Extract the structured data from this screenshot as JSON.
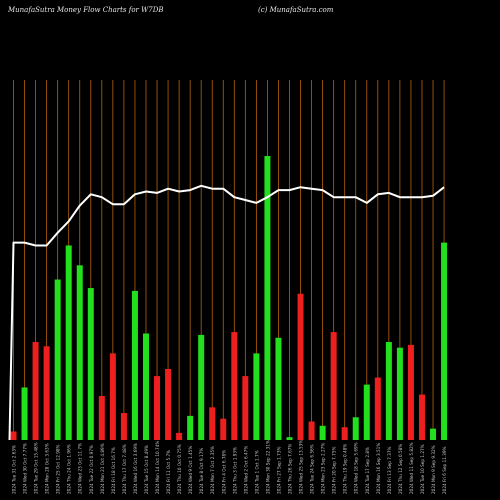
{
  "header": {
    "title": "MunafaSutra  Money Flow  Charts for W7DB",
    "source": "(c) MunafaSutra.com"
  },
  "colors": {
    "background": "#000000",
    "gridline": "#b8620a",
    "up": "#22e01e",
    "down": "#ee1f1f",
    "line": "#ffffff",
    "label": "#c8c8c8"
  },
  "chart_data": {
    "type": "bar",
    "title": "MunafaSutra  Money Flow  Charts for W7DB",
    "ylim": [
      0,
      100
    ],
    "grid": true,
    "bar_colors": [
      "down",
      "up",
      "down",
      "down",
      "up",
      "up",
      "up",
      "up",
      "down",
      "down",
      "down",
      "up",
      "up",
      "down",
      "down",
      "down",
      "up",
      "up",
      "down",
      "down",
      "down",
      "down",
      "up",
      "up",
      "up",
      "up",
      "down",
      "down",
      "up",
      "down",
      "down",
      "up",
      "up",
      "down",
      "up",
      "up",
      "down",
      "down",
      "up",
      "up"
    ],
    "values": [
      3,
      18.5,
      34.5,
      33,
      56.5,
      68.5,
      61.5,
      53.5,
      15.5,
      30.5,
      9.5,
      52.5,
      37.5,
      22.5,
      25,
      2.5,
      8.5,
      37,
      11.5,
      7.5,
      38,
      22.5,
      30.5,
      100,
      36,
      1,
      51.5,
      6.5,
      5,
      38,
      4.5,
      8,
      19.5,
      22,
      34.5,
      32.5,
      33.5,
      16,
      4,
      69.5
    ],
    "line": [
      69.5,
      69.5,
      68.5,
      68.5,
      73,
      77,
      82.5,
      86.5,
      85.5,
      83,
      83,
      86.5,
      87.5,
      87,
      88.5,
      87.5,
      88,
      89.5,
      88.5,
      88.5,
      85.5,
      84.5,
      83.5,
      85.5,
      88,
      88,
      89,
      88.5,
      88,
      85.5,
      85.5,
      85.5,
      83.5,
      86.5,
      87,
      85.5,
      85.5,
      85.5,
      86,
      89
    ],
    "x_labels": [
      "2024 Tue 31 Oct 2.63%",
      "2024 Wed 30 Oct 7.77%",
      "2024 Tue 29 Oct 15.48%",
      "2024 Mon 28 Oct 3.63%",
      "2024 Fri 25 Oct 12.98%",
      "2024 Thu 24 Oct 1.96%",
      "2024 Wed 23 Oct 11.7%",
      "2024 Tue 22 Oct 0.97%",
      "2024 Mon 21 Oct 4.89%",
      "2024 Fri 18 Oct 16.7%",
      "2024 Thu 17 Oct 7.48%",
      "2024 Wed 16 Oct 3.69%",
      "2024 Tue 15 Oct 8.49%",
      "2024 Mon 14 Oct 10.74%",
      "2024 Fri 11 Oct 5.7%",
      "2024 Thu 10 Oct 0.75%",
      "2024 Wed 9 Oct 1.45%",
      "2024 Tue 8 Oct 9.17%",
      "2024 Mon 7 Oct 2.35%",
      "2024 Fri 4 Oct 6.78%",
      "2024 Thu 3 Oct 1.93%",
      "2024 Wed 2 Oct 6.47%",
      "2024 Tue 1 Oct 1.7%",
      "2024 Mon 30 Sep 22.31%",
      "2024 Fri 27 Sep 1.73%",
      "2024 Thu 26 Sep 7.67%",
      "2024 Wed 25 Sep 13.53%",
      "2024 Tue 24 Sep 6.56%",
      "2024 Mon 23 Sep 2.27%",
      "2024 Fri 20 Sep 7.75%",
      "2024 Thu 19 Sep 0.48%",
      "2024 Wed 18 Sep 5.69%",
      "2024 Tue 17 Sep 2.8%",
      "2024 Mon 16 Sep 3.51%",
      "2024 Fri 13 Sep 7.37%",
      "2024 Thu 12 Sep 0.58%",
      "2024 Wed 11 Sep 5.82%",
      "2024 Tue 10 Sep 1.27%",
      "2024 Mon 9 Sep 9.32%",
      "2024 Fri 6 Sep 11.39%"
    ]
  }
}
